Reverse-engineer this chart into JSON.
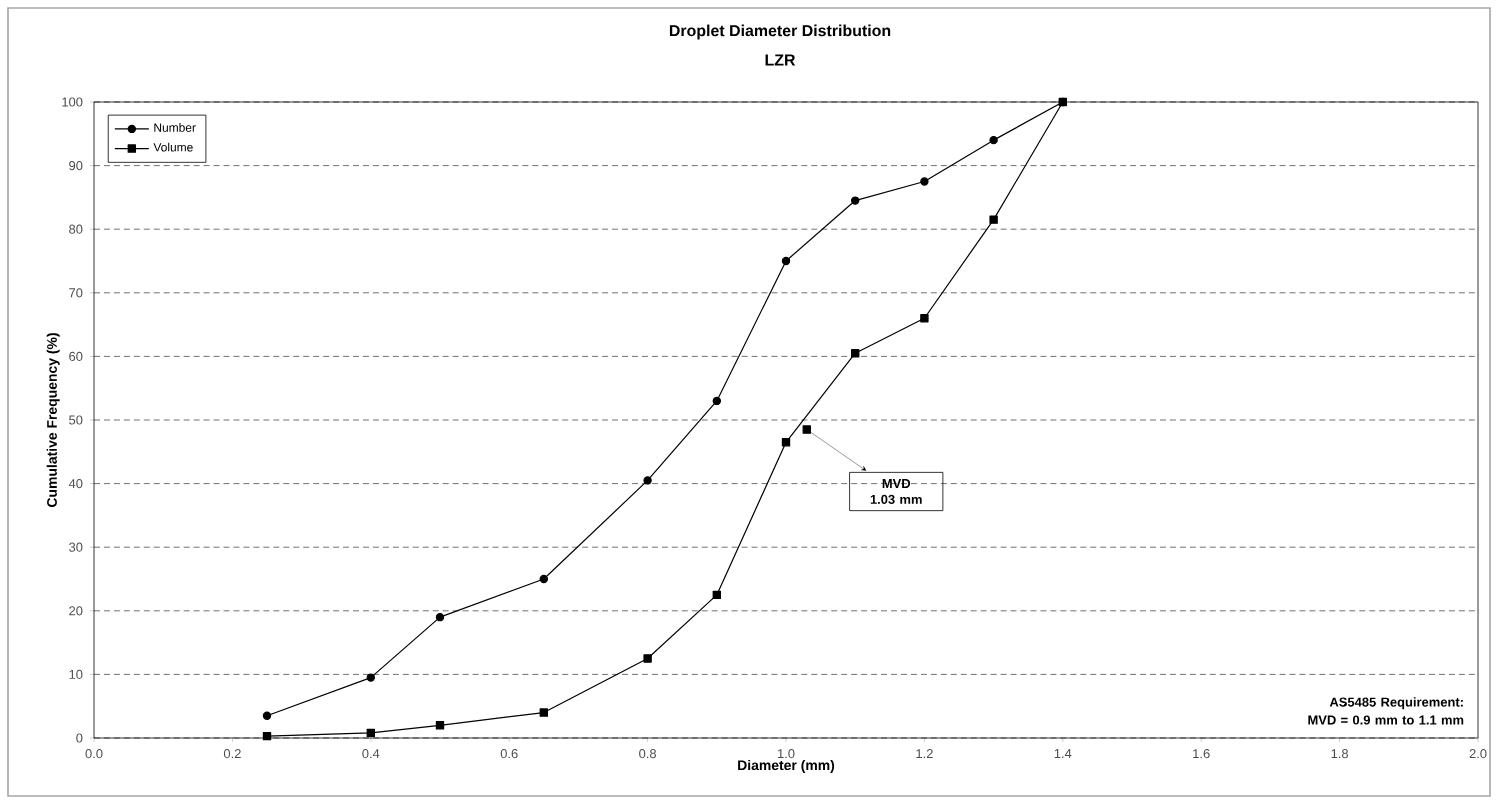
{
  "chart_data": {
    "type": "line",
    "title": "Droplet Diameter Distribution",
    "subtitle": "LZR",
    "xlabel": "Diameter (mm)",
    "ylabel": "Cumulative Frequency (%)",
    "series": [
      {
        "name": "Number",
        "color": "#000000",
        "marker": "circle",
        "x": [
          0.25,
          0.4,
          0.5,
          0.65,
          0.8,
          0.9,
          1.0,
          1.1,
          1.2,
          1.3,
          1.4
        ],
        "values": [
          3.5,
          9.5,
          19,
          25,
          40.5,
          53,
          75,
          84.5,
          87.5,
          94,
          100
        ]
      },
      {
        "name": "Volume",
        "color": "#000000",
        "marker": "square",
        "x": [
          0.25,
          0.4,
          0.5,
          0.65,
          0.8,
          0.9,
          1.0,
          1.1,
          1.2,
          1.3,
          1.4
        ],
        "values": [
          0.3,
          0.8,
          2,
          4,
          12.5,
          22.5,
          46.5,
          60.5,
          66,
          81.5,
          100
        ]
      },
      {
        "type": "scatter",
        "color": "#000000",
        "marker": "square",
        "x": [
          1.03
        ],
        "values": [
          48.5
        ]
      }
    ],
    "xlim": [
      0,
      2
    ],
    "xticks": [
      {
        "value": 0,
        "label": "0.0"
      },
      0.2,
      0.4,
      0.6,
      0.8,
      {
        "value": 1,
        "label": "1.0"
      },
      1.2,
      1.4,
      1.6,
      1.8,
      {
        "value": 2,
        "label": "2.0"
      }
    ],
    "ylim": [
      0,
      100
    ],
    "yticks": [
      0,
      10,
      20,
      30,
      40,
      50,
      60,
      70,
      80,
      90,
      100
    ],
    "grid": "y",
    "legend": "top left",
    "line_style": "solid",
    "annotations": [
      {
        "text": "MVD 1.03 mm",
        "x": 1.03,
        "y": 48.5
      },
      "AS5485 Requirement: MVD = 0.9 mm to 1.1 mm"
    ]
  }
}
